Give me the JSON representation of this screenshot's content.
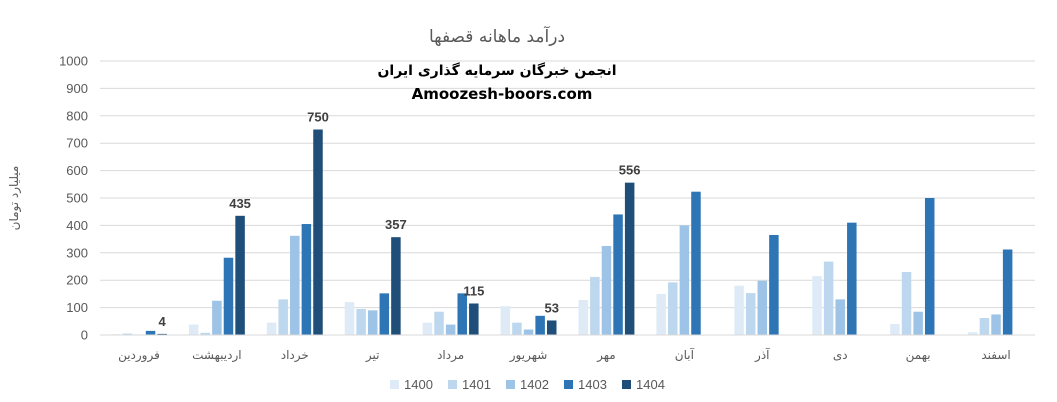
{
  "chart_data": {
    "type": "bar",
    "title": "درآمد ماهانه قصفها",
    "subtitle_1": "انجمن خبرگان سرمایه گذاری ایران",
    "subtitle_2": "Amoozesh-boors.com",
    "ylabel": "میلیارد تومان",
    "xlabel": "",
    "ylim": [
      0,
      1000
    ],
    "yticks": [
      0,
      100,
      200,
      300,
      400,
      500,
      600,
      700,
      800,
      900,
      1000
    ],
    "grid": true,
    "legend_position": "bottom",
    "categories": [
      "فروردین",
      "اردیبهشت",
      "خرداد",
      "تیر",
      "مرداد",
      "شهریور",
      "مهر",
      "آبان",
      "آذر",
      "دی",
      "بهمن",
      "اسفند"
    ],
    "series": [
      {
        "name": "1400",
        "color": "#deebf7",
        "values": [
          3,
          38,
          45,
          120,
          45,
          105,
          128,
          150,
          180,
          215,
          40,
          10
        ]
      },
      {
        "name": "1401",
        "color": "#bdd7ee",
        "values": [
          5,
          8,
          130,
          95,
          85,
          45,
          212,
          192,
          153,
          268,
          230,
          62
        ]
      },
      {
        "name": "1402",
        "color": "#9dc3e6",
        "values": [
          2,
          125,
          362,
          90,
          38,
          20,
          325,
          400,
          198,
          130,
          85,
          75
        ]
      },
      {
        "name": "1403",
        "color": "#2e75b6",
        "values": [
          15,
          282,
          405,
          152,
          152,
          70,
          440,
          523,
          365,
          410,
          500,
          312
        ]
      },
      {
        "name": "1404",
        "color": "#1f4e79",
        "values": [
          4,
          435,
          750,
          357,
          115,
          53,
          556,
          null,
          null,
          null,
          null,
          null
        ]
      }
    ],
    "data_labels": [
      {
        "series": "1404",
        "category": "فروردین",
        "text": "4"
      },
      {
        "series": "1404",
        "category": "اردیبهشت",
        "text": "435"
      },
      {
        "series": "1404",
        "category": "خرداد",
        "text": "750"
      },
      {
        "series": "1404",
        "category": "تیر",
        "text": "357"
      },
      {
        "series": "1404",
        "category": "مرداد",
        "text": "115"
      },
      {
        "series": "1404",
        "category": "شهریور",
        "text": "53"
      },
      {
        "series": "1404",
        "category": "مهر",
        "text": "556"
      }
    ]
  }
}
